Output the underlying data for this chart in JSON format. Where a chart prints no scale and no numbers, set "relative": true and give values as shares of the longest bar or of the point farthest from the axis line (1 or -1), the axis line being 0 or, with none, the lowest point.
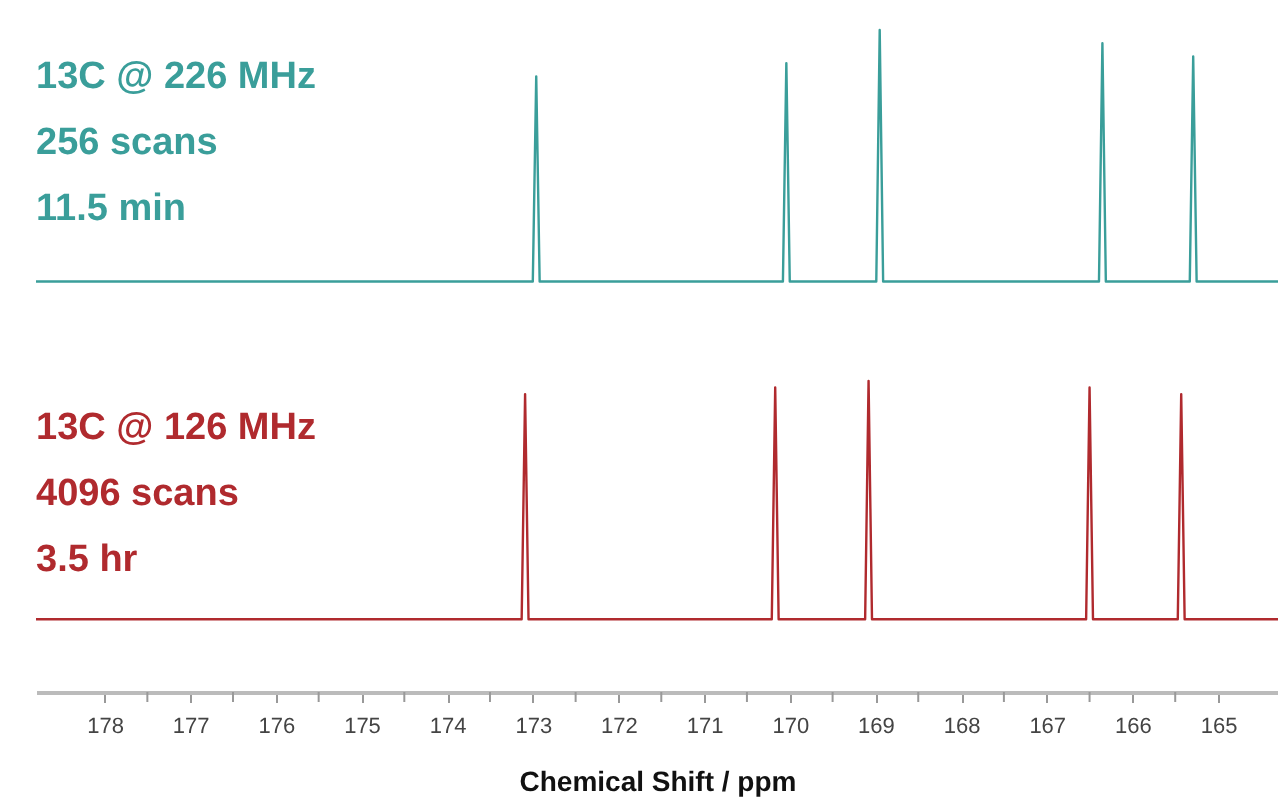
{
  "chart_data": {
    "type": "line",
    "xlabel": "Chemical Shift / ppm",
    "relative": true,
    "legend": false,
    "grid": false,
    "marker": "none",
    "line_style": "solid",
    "xlim": [
      178.8,
      164.3
    ],
    "xticks": [
      178,
      {
        "value": 177.5,
        "label": null
      },
      177,
      {
        "value": 176.5,
        "label": null
      },
      176,
      {
        "value": 175.5,
        "label": null
      },
      175,
      {
        "value": 174.5,
        "label": null
      },
      174,
      {
        "value": 173.5,
        "label": null
      },
      173,
      {
        "value": 172.5,
        "label": null
      },
      172,
      {
        "value": 171.5,
        "label": null
      },
      171,
      {
        "value": 170.5,
        "label": null
      },
      170,
      {
        "value": 169.5,
        "label": null
      },
      169,
      {
        "value": 168.5,
        "label": null
      },
      168,
      {
        "value": 167.5,
        "label": null
      },
      167,
      {
        "value": 166.5,
        "label": null
      },
      166,
      {
        "value": 165.5,
        "label": null
      },
      165
    ],
    "series": [
      {
        "name": "13C @ 226 MHz\n256 scans\n11.5 min",
        "color": "#3a9e9a",
        "x": [
          178.8,
          173.0,
          172.96,
          172.92,
          170.08,
          170.04,
          170.0,
          168.99,
          168.95,
          168.91,
          166.39,
          166.35,
          166.31,
          165.33,
          165.29,
          165.25,
          164.3
        ],
        "values": [
          0.62,
          0.62,
          0.93,
          0.62,
          0.62,
          0.95,
          0.62,
          0.62,
          1.0,
          0.62,
          0.62,
          0.98,
          0.62,
          0.62,
          0.96,
          0.62,
          0.62
        ]
      },
      {
        "name": "13C @ 126 MHz\n4096 scans\n3.5 hr",
        "color": "#b02a2e",
        "x": [
          178.8,
          173.13,
          173.09,
          173.05,
          170.21,
          170.17,
          170.13,
          169.12,
          169.08,
          169.04,
          166.54,
          166.5,
          166.46,
          165.47,
          165.43,
          165.39,
          164.3
        ],
        "values": [
          0.11,
          0.11,
          0.45,
          0.11,
          0.11,
          0.46,
          0.11,
          0.11,
          0.47,
          0.11,
          0.11,
          0.46,
          0.11,
          0.11,
          0.45,
          0.11,
          0.11
        ]
      }
    ]
  }
}
